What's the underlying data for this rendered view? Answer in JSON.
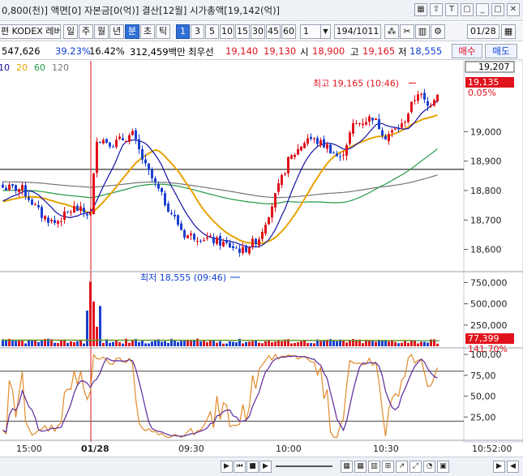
{
  "info_bar": {
    "text": "0,800(천)] 액면[0] 자본금[0(억)] 결산[12월] 시가총액[19,142(억)]",
    "icons": [
      "grid-icon",
      "arrow-up-icon",
      "font-icon",
      "window-icon",
      "minimize-icon",
      "maximize-icon",
      "close-icon"
    ],
    "icon_glyphs": [
      "▦",
      "⇧",
      "T",
      "▢",
      "_",
      "□",
      "✕"
    ]
  },
  "toolbar": {
    "stock_name": "편 KODEX 레버",
    "period_buttons": [
      "일",
      "주",
      "월",
      "년",
      "분",
      "초",
      "틱"
    ],
    "active_period": "분",
    "interval_buttons": [
      "1",
      "3",
      "5",
      "10",
      "15",
      "30",
      "45",
      "60"
    ],
    "active_interval": "1",
    "interval_input": "1",
    "page_counter": "194/1011",
    "tool_glyphs": [
      "⁂",
      "✂",
      "▥",
      "⚙"
    ],
    "date_input": "01/28",
    "calendar_glyph": "▦"
  },
  "quote": {
    "volume": "547,626",
    "rate": "39.23%",
    "rate2": "16.42%",
    "trade_value": "312,459백만",
    "best_label": "최우선",
    "best_ask": "19,140",
    "best_bid": "19,130",
    "open_label": "시",
    "open": "18,900",
    "high_label": "고",
    "high": "19,165",
    "low_label": "저",
    "low": "18,555",
    "buy_button": "매수",
    "sell_button": "매도"
  },
  "chart_data": [
    {
      "type": "candlestick",
      "legend": [
        {
          "label": "10",
          "color": "#1010a0"
        },
        {
          "label": "20",
          "color": "#e6a200"
        },
        {
          "label": "60",
          "color": "#229944"
        },
        {
          "label": "120",
          "color": "#777777"
        }
      ],
      "y_ticks": [
        "19,000",
        "18,900",
        "18,800",
        "18,700",
        "18,600"
      ],
      "y_values": [
        19000,
        18900,
        18800,
        18700,
        18600
      ],
      "ylim": [
        18530,
        19235
      ],
      "current_price_box": "19,207",
      "last_price_box": "19,135",
      "change_pct": "0.05%",
      "reference_price": 18872,
      "annotations": {
        "high": {
          "text": "최고 19,165 (10:46)",
          "value": 19165
        },
        "low": {
          "text": "최저 18,555 (09:46)",
          "value": 18555
        }
      },
      "x_ticks": [
        "15:00",
        "01/28",
        "09:30",
        "10:00",
        "10:30"
      ],
      "current_time": "10:52:00",
      "colors": {
        "up": "#e0121c",
        "down": "#1a3fd0",
        "ma10": "#1010a0",
        "ma20": "#e6a200",
        "ma60": "#229944",
        "ma120": "#777777"
      }
    },
    {
      "type": "bar",
      "name": "volume",
      "y_ticks": [
        "750,000",
        "500,000",
        "250,000"
      ],
      "y_values": [
        750000,
        500000,
        250000
      ],
      "ylim": [
        0,
        850000
      ],
      "last_volume_box": "77,399",
      "ratio_box": "141.70%"
    },
    {
      "type": "line",
      "name": "stochastic",
      "y_ticks": [
        "100,00",
        "75,00",
        "50,00",
        "25,00"
      ],
      "y_values": [
        100,
        75,
        50,
        25
      ],
      "ylim": [
        0,
        105
      ],
      "reference_lines": [
        80,
        20
      ]
    }
  ],
  "navigator": {
    "glyphs": [
      "▶",
      "⏮",
      "■",
      "▶",
      "+",
      "−",
      "▦",
      "▦",
      "▥",
      "⊞",
      "↗",
      "⤢",
      "◔",
      "▣",
      "▶",
      "◀"
    ]
  }
}
